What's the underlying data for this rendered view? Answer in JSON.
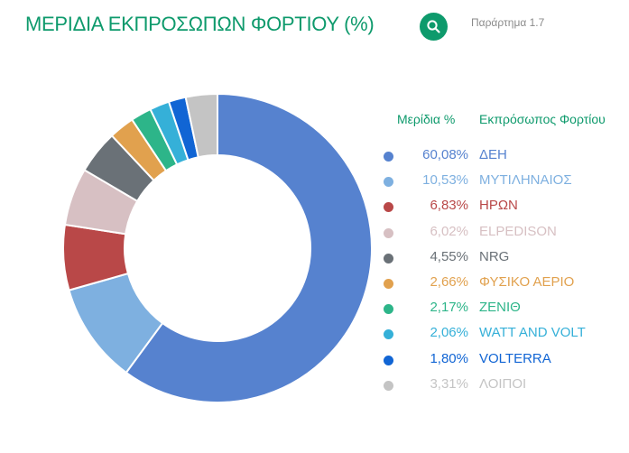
{
  "header": {
    "title": "ΜΕΡΙΔΙΑ ΕΚΠΡΟΣΩΠΩΝ ΦΟΡΤΙΟΥ (%)",
    "annex_label": "Παράρτημα 1.7",
    "search_icon": "search-icon"
  },
  "legend": {
    "share_header": "Μερίδια %",
    "representative_header": "Εκπρόσωπος Φορτίου"
  },
  "chart_data": {
    "type": "pie",
    "title": "ΜΕΡΙΔΙΑ ΕΚΠΡΟΣΩΠΩΝ ΦΟΡΤΙΟΥ (%)",
    "donut": true,
    "legend_position": "right",
    "slices": [
      {
        "label": "ΔΕΗ",
        "value": 60.08,
        "value_label": "60,08%",
        "color": "#5682cf"
      },
      {
        "label": "ΜΥΤΙΛΗΝΑΙΟΣ",
        "value": 10.53,
        "value_label": "10,53%",
        "color": "#7eb0e0"
      },
      {
        "label": "ΗΡΩΝ",
        "value": 6.83,
        "value_label": "6,83%",
        "color": "#b94848"
      },
      {
        "label": "ELPEDISON",
        "value": 6.02,
        "value_label": "6,02%",
        "color": "#d7c0c3"
      },
      {
        "label": "NRG",
        "value": 4.55,
        "value_label": "4,55%",
        "color": "#6a7177"
      },
      {
        "label": "ΦΥΣΙΚΟ ΑΕΡΙΟ",
        "value": 2.66,
        "value_label": "2,66%",
        "color": "#e1a14e"
      },
      {
        "label": "ΖΕΝΙΘ",
        "value": 2.17,
        "value_label": "2,17%",
        "color": "#2db589"
      },
      {
        "label": "WATT AND VOLT",
        "value": 2.06,
        "value_label": "2,06%",
        "color": "#35b0d8"
      },
      {
        "label": "VOLTERRA",
        "value": 1.8,
        "value_label": "1,80%",
        "color": "#1165d4"
      },
      {
        "label": "ΛΟΙΠΟΙ",
        "value": 3.31,
        "value_label": "3,31%",
        "color": "#c4c4c4"
      }
    ]
  }
}
